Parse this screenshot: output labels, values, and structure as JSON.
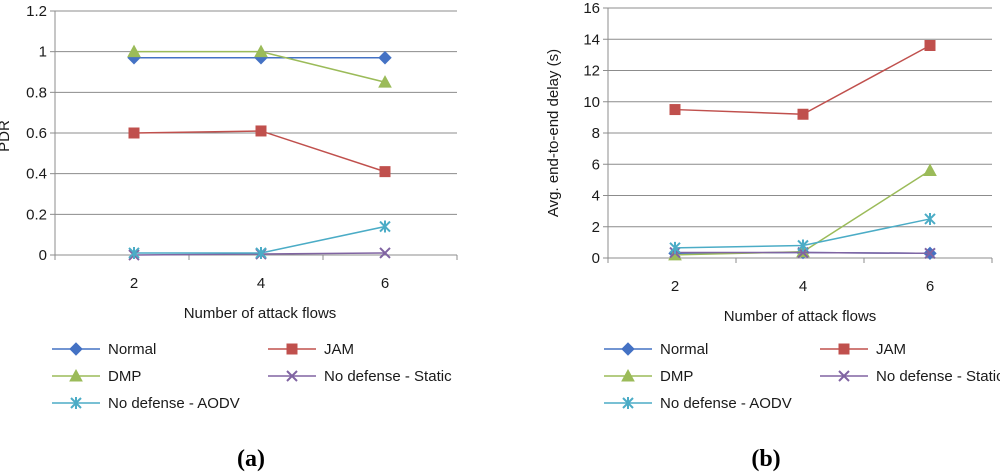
{
  "chart_data": [
    {
      "type": "line",
      "panel_label": "(a)",
      "title": "",
      "xlabel": "Number of attack flows",
      "ylabel": "PDR",
      "categories": [
        "2",
        "4",
        "6"
      ],
      "ylim": [
        0,
        1.2
      ],
      "yticks": [
        "0",
        "0.2",
        "0.4",
        "0.6",
        "0.8",
        "1",
        "1.2"
      ],
      "grid": true,
      "legend_position": "bottom",
      "series": [
        {
          "name": "Normal",
          "color": "#4472C4",
          "marker": "diamond",
          "values": [
            0.97,
            0.97,
            0.97
          ]
        },
        {
          "name": "JAM",
          "color": "#C0504D",
          "marker": "square",
          "values": [
            0.6,
            0.61,
            0.41
          ]
        },
        {
          "name": "DMP",
          "color": "#9BBB59",
          "marker": "triangle",
          "values": [
            1.0,
            1.0,
            0.85
          ]
        },
        {
          "name": "No defense - Static",
          "color": "#8064A2",
          "marker": "x",
          "values": [
            0.0,
            0.005,
            0.01
          ]
        },
        {
          "name": "No defense - AODV",
          "color": "#4BACC6",
          "marker": "star",
          "values": [
            0.01,
            0.01,
            0.14
          ]
        }
      ]
    },
    {
      "type": "line",
      "panel_label": "(b)",
      "title": "",
      "xlabel": "Number of attack flows",
      "ylabel": "Avg. end-to-end delay (s)",
      "categories": [
        "2",
        "4",
        "6"
      ],
      "ylim": [
        0,
        16
      ],
      "yticks": [
        "0",
        "2",
        "4",
        "6",
        "8",
        "10",
        "12",
        "14",
        "16"
      ],
      "grid": true,
      "legend_position": "bottom",
      "series": [
        {
          "name": "Normal",
          "color": "#4472C4",
          "marker": "diamond",
          "values": [
            0.3,
            0.35,
            0.3
          ]
        },
        {
          "name": "JAM",
          "color": "#C0504D",
          "marker": "square",
          "values": [
            9.5,
            9.2,
            13.6
          ]
        },
        {
          "name": "DMP",
          "color": "#9BBB59",
          "marker": "triangle",
          "values": [
            0.2,
            0.4,
            5.6
          ]
        },
        {
          "name": "No defense - Static",
          "color": "#8064A2",
          "marker": "x",
          "values": [
            0.35,
            0.35,
            0.3
          ]
        },
        {
          "name": "No defense - AODV",
          "color": "#4BACC6",
          "marker": "star",
          "values": [
            0.65,
            0.8,
            2.5
          ]
        }
      ]
    }
  ]
}
